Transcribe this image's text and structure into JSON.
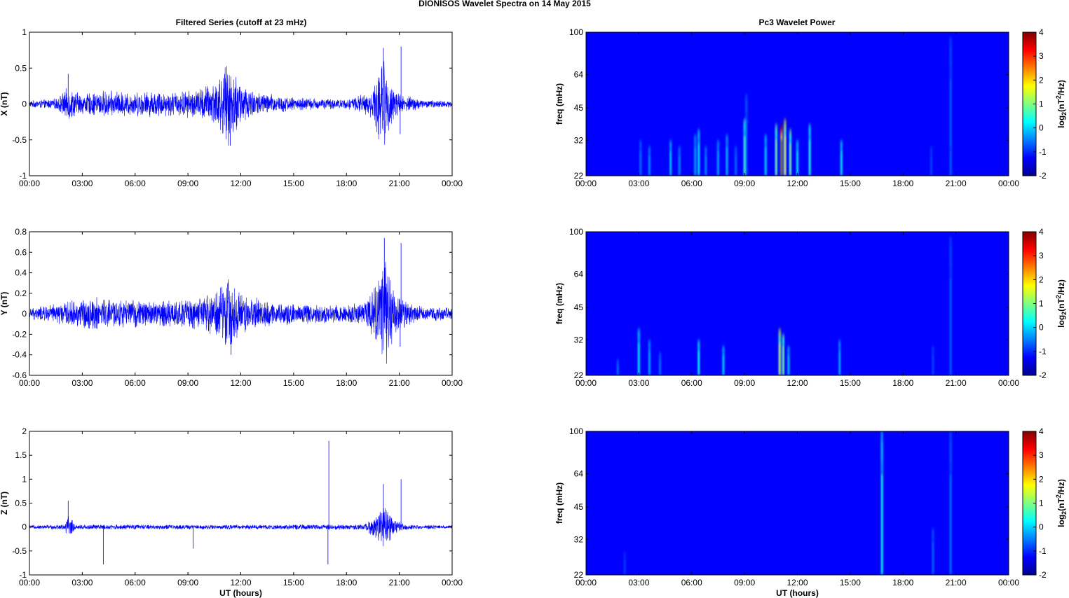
{
  "figure": {
    "title": "DIONISOS Wavelet Spectra on 14 May      2015",
    "left_column_title": "Filtered Series (cutoff at 23 mHz)",
    "right_column_title": "Pc3 Wavelet Power",
    "xlabel_bottom": "UT (hours)"
  },
  "chart_data": [
    {
      "type": "line",
      "panel": "time-series-x",
      "title": "Filtered Series (cutoff at 23 mHz)",
      "ylabel": "X (nT)",
      "xlabel": "",
      "ylim": [
        -1,
        1
      ],
      "yticks": [
        "1",
        "0.5",
        "0",
        "-0.5",
        "-1"
      ],
      "xticks": [
        "00:00",
        "03:00",
        "06:00",
        "09:00",
        "12:00",
        "15:00",
        "18:00",
        "21:00",
        "00:00"
      ],
      "xrange_hours": [
        0,
        24
      ],
      "color": "#0000ff",
      "envelope": [
        {
          "hour": 0.0,
          "amp": 0.05
        },
        {
          "hour": 1.5,
          "amp": 0.08
        },
        {
          "hour": 2.2,
          "amp": 0.25
        },
        {
          "hour": 3.0,
          "amp": 0.15
        },
        {
          "hour": 4.2,
          "amp": 0.2
        },
        {
          "hour": 6.0,
          "amp": 0.18
        },
        {
          "hour": 7.2,
          "amp": 0.2
        },
        {
          "hour": 8.0,
          "amp": 0.18
        },
        {
          "hour": 9.5,
          "amp": 0.22
        },
        {
          "hour": 10.5,
          "amp": 0.35
        },
        {
          "hour": 11.3,
          "amp": 0.6
        },
        {
          "hour": 12.2,
          "amp": 0.3
        },
        {
          "hour": 13.0,
          "amp": 0.18
        },
        {
          "hour": 15.0,
          "amp": 0.1
        },
        {
          "hour": 18.0,
          "amp": 0.07
        },
        {
          "hour": 19.5,
          "amp": 0.2
        },
        {
          "hour": 20.0,
          "amp": 0.75
        },
        {
          "hour": 20.5,
          "amp": 0.35
        },
        {
          "hour": 21.0,
          "amp": 0.15
        },
        {
          "hour": 22.5,
          "amp": 0.06
        },
        {
          "hour": 24.0,
          "amp": 0.05
        }
      ],
      "spikes": [
        {
          "hour": 2.2,
          "value": 0.42
        },
        {
          "hour": 20.1,
          "value": 0.78
        },
        {
          "hour": 21.1,
          "value": 0.8
        },
        {
          "hour": 21.05,
          "value": -0.42
        },
        {
          "hour": 11.4,
          "value": -0.58
        }
      ]
    },
    {
      "type": "line",
      "panel": "time-series-y",
      "title": "",
      "ylabel": "Y (nT)",
      "xlabel": "",
      "ylim": [
        -0.6,
        0.8
      ],
      "yticks": [
        "0.8",
        "0.6",
        "0.4",
        "0.2",
        "0",
        "-0.2",
        "-0.4",
        "-0.6"
      ],
      "xticks": [
        "00:00",
        "03:00",
        "06:00",
        "09:00",
        "12:00",
        "15:00",
        "18:00",
        "21:00",
        "00:00"
      ],
      "xrange_hours": [
        0,
        24
      ],
      "color": "#0000ff",
      "envelope": [
        {
          "hour": 0.0,
          "amp": 0.06
        },
        {
          "hour": 2.0,
          "amp": 0.12
        },
        {
          "hour": 3.5,
          "amp": 0.18
        },
        {
          "hour": 5.0,
          "amp": 0.15
        },
        {
          "hour": 7.0,
          "amp": 0.14
        },
        {
          "hour": 8.5,
          "amp": 0.15
        },
        {
          "hour": 10.0,
          "amp": 0.18
        },
        {
          "hour": 11.3,
          "amp": 0.38
        },
        {
          "hour": 12.2,
          "amp": 0.2
        },
        {
          "hour": 14.0,
          "amp": 0.12
        },
        {
          "hour": 17.0,
          "amp": 0.1
        },
        {
          "hour": 19.0,
          "amp": 0.12
        },
        {
          "hour": 19.8,
          "amp": 0.35
        },
        {
          "hour": 20.2,
          "amp": 0.7
        },
        {
          "hour": 20.8,
          "amp": 0.2
        },
        {
          "hour": 22.0,
          "amp": 0.08
        },
        {
          "hour": 24.0,
          "amp": 0.06
        }
      ],
      "spikes": [
        {
          "hour": 20.15,
          "value": 0.74
        },
        {
          "hour": 21.1,
          "value": 0.69
        },
        {
          "hour": 11.45,
          "value": -0.4
        },
        {
          "hour": 21.05,
          "value": -0.32
        }
      ]
    },
    {
      "type": "line",
      "panel": "time-series-z",
      "title": "",
      "ylabel": "Z (nT)",
      "xlabel": "UT (hours)",
      "ylim": [
        -1,
        2
      ],
      "yticks": [
        "2",
        "1.5",
        "1",
        "0.5",
        "0",
        "-0.5",
        "-1"
      ],
      "xticks": [
        "00:00",
        "03:00",
        "06:00",
        "09:00",
        "12:00",
        "15:00",
        "18:00",
        "21:00",
        "00:00"
      ],
      "xrange_hours": [
        0,
        24
      ],
      "color": "#0000ff",
      "envelope": [
        {
          "hour": 0.0,
          "amp": 0.04
        },
        {
          "hour": 2.0,
          "amp": 0.06
        },
        {
          "hour": 2.2,
          "amp": 0.3
        },
        {
          "hour": 2.6,
          "amp": 0.06
        },
        {
          "hour": 10.0,
          "amp": 0.05
        },
        {
          "hour": 19.0,
          "amp": 0.06
        },
        {
          "hour": 19.7,
          "amp": 0.3
        },
        {
          "hour": 20.1,
          "amp": 0.6
        },
        {
          "hour": 20.6,
          "amp": 0.2
        },
        {
          "hour": 21.5,
          "amp": 0.06
        },
        {
          "hour": 24.0,
          "amp": 0.04
        }
      ],
      "spikes": [
        {
          "hour": 2.2,
          "value": 0.55
        },
        {
          "hour": 4.2,
          "value": -0.78
        },
        {
          "hour": 9.3,
          "value": -0.45
        },
        {
          "hour": 17.0,
          "value": 1.8
        },
        {
          "hour": 16.95,
          "value": -0.78
        },
        {
          "hour": 21.1,
          "value": 1.0
        },
        {
          "hour": 20.1,
          "value": 0.9
        }
      ]
    },
    {
      "type": "heatmap",
      "panel": "wavelet-power-x",
      "title": "Pc3 Wavelet Power",
      "ylabel": "freq (mHz)",
      "xlabel": "",
      "yticks": [
        "100",
        "64",
        "45",
        "32",
        "22"
      ],
      "ylim_mHz": [
        22,
        100
      ],
      "yscale": "log",
      "xticks": [
        "00:00",
        "03:00",
        "06:00",
        "09:00",
        "12:00",
        "15:00",
        "18:00",
        "21:00",
        "00:00"
      ],
      "colorbar_label": "log2(nT2/Hz)",
      "colorbar_ticks": [
        "4",
        "3",
        "2",
        "1",
        "0",
        "-1",
        "-2"
      ],
      "clim": [
        -2,
        4
      ],
      "colormap": "jet",
      "background_value": -2,
      "features": [
        {
          "hour": 3.1,
          "fmax": 32,
          "power": -1.2
        },
        {
          "hour": 3.6,
          "fmax": 30,
          "power": -1.0
        },
        {
          "hour": 4.8,
          "fmax": 32,
          "power": -0.6
        },
        {
          "hour": 5.3,
          "fmax": 30,
          "power": -1.0
        },
        {
          "hour": 6.2,
          "fmax": 34,
          "power": -0.8
        },
        {
          "hour": 6.4,
          "fmax": 36,
          "power": -0.4
        },
        {
          "hour": 6.8,
          "fmax": 30,
          "power": -1.0
        },
        {
          "hour": 7.5,
          "fmax": 32,
          "power": -0.8
        },
        {
          "hour": 8.0,
          "fmax": 34,
          "power": -0.7
        },
        {
          "hour": 8.5,
          "fmax": 30,
          "power": -1.2
        },
        {
          "hour": 9.0,
          "fmax": 40,
          "power": 0.2
        },
        {
          "hour": 9.1,
          "fmax": 52,
          "power": -1.2
        },
        {
          "hour": 10.2,
          "fmax": 34,
          "power": -0.5
        },
        {
          "hour": 10.8,
          "fmax": 38,
          "power": 0.6
        },
        {
          "hour": 11.1,
          "fmax": 38,
          "power": 4.0
        },
        {
          "hour": 11.3,
          "fmax": 40,
          "power": 1.5
        },
        {
          "hour": 11.6,
          "fmax": 36,
          "power": 0.6
        },
        {
          "hour": 12.0,
          "fmax": 32,
          "power": -0.4
        },
        {
          "hour": 12.7,
          "fmax": 38,
          "power": 0.0
        },
        {
          "hour": 14.5,
          "fmax": 32,
          "power": -0.4
        },
        {
          "hour": 19.6,
          "fmax": 30,
          "power": -1.5
        },
        {
          "hour": 20.7,
          "fmax": 95,
          "power": -1.3
        },
        {
          "hour": 20.7,
          "fmax": 32,
          "power": -1.3
        }
      ]
    },
    {
      "type": "heatmap",
      "panel": "wavelet-power-y",
      "title": "",
      "ylabel": "freq (mHz)",
      "xlabel": "",
      "yticks": [
        "100",
        "64",
        "45",
        "32",
        "22"
      ],
      "ylim_mHz": [
        22,
        100
      ],
      "yscale": "log",
      "xticks": [
        "00:00",
        "03:00",
        "06:00",
        "09:00",
        "12:00",
        "15:00",
        "18:00",
        "21:00",
        "00:00"
      ],
      "colorbar_label": "log2(nT2/Hz)",
      "colorbar_ticks": [
        "4",
        "3",
        "2",
        "1",
        "0",
        "-1",
        "-2"
      ],
      "clim": [
        -2,
        4
      ],
      "colormap": "jet",
      "background_value": -2,
      "features": [
        {
          "hour": 1.8,
          "fmax": 26,
          "power": -1.2
        },
        {
          "hour": 3.0,
          "fmax": 36,
          "power": -0.3
        },
        {
          "hour": 3.6,
          "fmax": 32,
          "power": -0.8
        },
        {
          "hour": 4.2,
          "fmax": 28,
          "power": -1.2
        },
        {
          "hour": 6.4,
          "fmax": 32,
          "power": -0.2
        },
        {
          "hour": 7.8,
          "fmax": 30,
          "power": -0.5
        },
        {
          "hour": 11.0,
          "fmax": 36,
          "power": 1.2
        },
        {
          "hour": 11.2,
          "fmax": 34,
          "power": 0.6
        },
        {
          "hour": 11.5,
          "fmax": 30,
          "power": -0.6
        },
        {
          "hour": 14.4,
          "fmax": 32,
          "power": -0.8
        },
        {
          "hour": 19.7,
          "fmax": 30,
          "power": -1.5
        },
        {
          "hour": 20.7,
          "fmax": 95,
          "power": -1.3
        }
      ]
    },
    {
      "type": "heatmap",
      "panel": "wavelet-power-z",
      "title": "",
      "ylabel": "freq (mHz)",
      "xlabel": "UT (hours)",
      "yticks": [
        "100",
        "64",
        "45",
        "32",
        "22"
      ],
      "ylim_mHz": [
        22,
        100
      ],
      "yscale": "log",
      "xticks": [
        "00:00",
        "03:00",
        "06:00",
        "09:00",
        "12:00",
        "15:00",
        "18:00",
        "21:00",
        "00:00"
      ],
      "colorbar_label": "log2(nT2/Hz)",
      "colorbar_ticks": [
        "4",
        "3",
        "2",
        "1",
        "0",
        "-1",
        "-2"
      ],
      "clim": [
        -2,
        4
      ],
      "colormap": "jet",
      "background_value": -2,
      "features": [
        {
          "hour": 2.2,
          "fmax": 28,
          "power": -1.6
        },
        {
          "hour": 16.8,
          "fmax": 100,
          "power": -0.2
        },
        {
          "hour": 19.7,
          "fmax": 36,
          "power": -1.3
        },
        {
          "hour": 20.7,
          "fmax": 100,
          "power": -1.2
        }
      ]
    }
  ]
}
